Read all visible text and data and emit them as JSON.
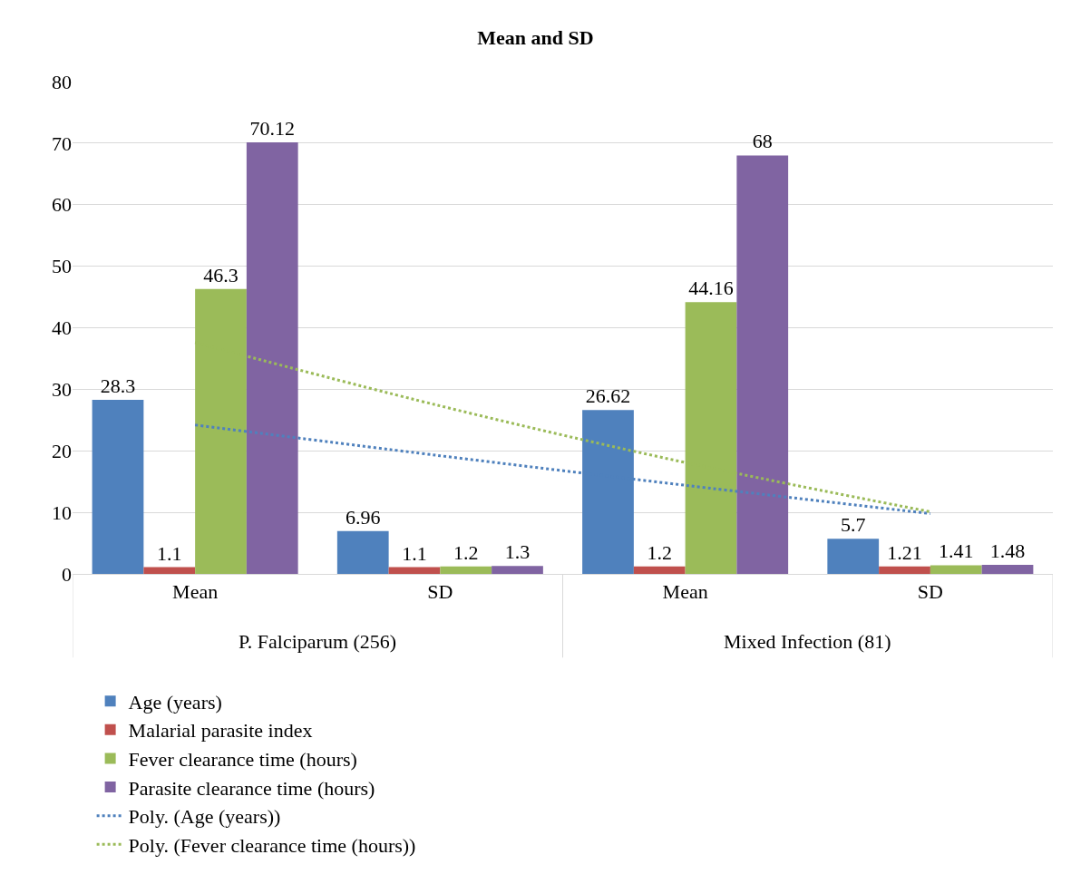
{
  "chart_data": {
    "type": "bar",
    "title": "Mean and SD",
    "categories": [
      "Mean",
      "SD",
      "Mean",
      "SD"
    ],
    "annotations": [
      "P. Falciparum (256)",
      "Mixed Infection (81)"
    ],
    "series": [
      {
        "name": "Age (years)",
        "color": "#4f81bd",
        "values": [
          28.3,
          6.96,
          26.62,
          5.7
        ],
        "value_labels": [
          "28.3",
          "6.96",
          "26.62",
          "5.7"
        ]
      },
      {
        "name": "Malarial parasite index",
        "color": "#c0504d",
        "values": [
          1.1,
          1.1,
          1.2,
          1.21
        ],
        "value_labels": [
          "1.1",
          "1.1",
          "1.2",
          "1.21"
        ]
      },
      {
        "name": "Fever clearance time (hours)",
        "color": "#9bbb59",
        "values": [
          46.3,
          1.2,
          44.16,
          1.41
        ],
        "value_labels": [
          "46.3",
          "1.2",
          "44.16",
          "1.41"
        ]
      },
      {
        "name": "Parasite clearance time (hours)",
        "color": "#8064a2",
        "values": [
          70.12,
          1.3,
          68,
          1.48
        ],
        "value_labels": [
          "70.12",
          "1.3",
          "68",
          "1.48"
        ]
      },
      {
        "name": "Poly. (Age (years))",
        "type": "line",
        "line_style": "dotted",
        "color": "#4f81bd",
        "values": [
          24.2,
          19.2,
          14.4,
          9.8
        ]
      },
      {
        "name": "Poly. (Fever clearance time (hours))",
        "type": "line",
        "line_style": "dotted",
        "color": "#9bbb59",
        "values": [
          37.6,
          27.3,
          18.1,
          10.1
        ]
      }
    ],
    "ylim": [
      0,
      80
    ],
    "yticks": [
      0,
      10,
      20,
      30,
      40,
      50,
      60,
      70,
      80
    ],
    "grid": "y",
    "legend": "bottom"
  }
}
